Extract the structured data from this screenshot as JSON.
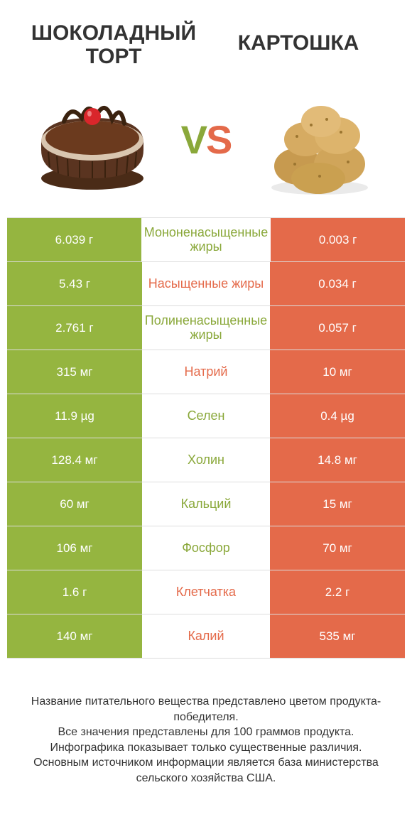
{
  "colors": {
    "green": "#95b540",
    "orange": "#e46a4a",
    "neutral_left": "#f3f3f3",
    "mid_text_green": "#8aa83a",
    "mid_text_orange": "#e46a4a"
  },
  "header": {
    "left_title": "ШОКОЛАДНЫЙ ТОРТ",
    "right_title": "КАРТОШКА",
    "vs_v": "V",
    "vs_s": "S"
  },
  "rows": [
    {
      "left": "6.039 г",
      "label": "Мононенасыщенные жиры",
      "right": "0.003 г",
      "winner": "left"
    },
    {
      "left": "5.43 г",
      "label": "Насыщенные жиры",
      "right": "0.034 г",
      "winner": "right"
    },
    {
      "left": "2.761 г",
      "label": "Полиненасыщенные жиры",
      "right": "0.057 г",
      "winner": "left"
    },
    {
      "left": "315 мг",
      "label": "Натрий",
      "right": "10 мг",
      "winner": "right"
    },
    {
      "left": "11.9 µg",
      "label": "Селен",
      "right": "0.4 µg",
      "winner": "left"
    },
    {
      "left": "128.4 мг",
      "label": "Холин",
      "right": "14.8 мг",
      "winner": "left"
    },
    {
      "left": "60 мг",
      "label": "Кальций",
      "right": "15 мг",
      "winner": "left"
    },
    {
      "left": "106 мг",
      "label": "Фосфор",
      "right": "70 мг",
      "winner": "left"
    },
    {
      "left": "1.6 г",
      "label": "Клетчатка",
      "right": "2.2 г",
      "winner": "right"
    },
    {
      "left": "140 мг",
      "label": "Калий",
      "right": "535 мг",
      "winner": "right"
    }
  ],
  "footer": {
    "line1": "Название питательного вещества представлено цветом продукта-победителя.",
    "line2": "Все значения представлены для 100 граммов продукта.",
    "line3": "Инфографика показывает только существенные различия.",
    "line4": "Основным источником информации является база министерства сельского хозяйства США."
  },
  "typography": {
    "title_fontsize": 30,
    "cell_fontsize": 17,
    "label_fontsize": 18,
    "vs_fontsize": 56,
    "footer_fontsize": 16
  }
}
